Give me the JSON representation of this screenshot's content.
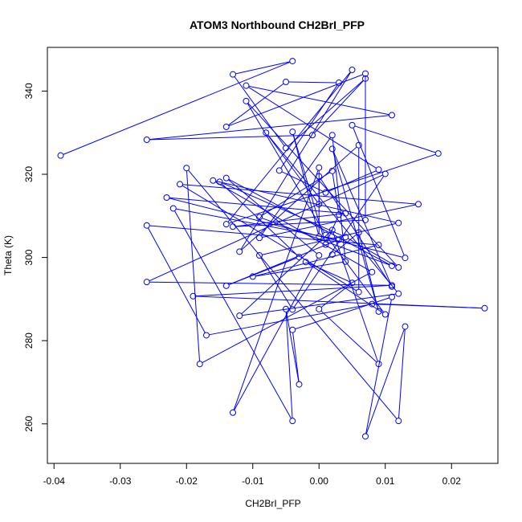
{
  "chart_data": {
    "type": "line",
    "title": "ATOM3 Northbound CH2BrI_PFP",
    "xlabel": "CH2BrI_PFP",
    "ylabel": "Theta (K)",
    "xlim": [
      -0.041,
      0.027
    ],
    "ylim": [
      250.5,
      350.5
    ],
    "x_ticks": [
      -0.04,
      -0.03,
      -0.02,
      -0.01,
      0.0,
      0.01,
      0.02
    ],
    "x_tick_labels": [
      "-0.04",
      "-0.03",
      "-0.02",
      "-0.01",
      "0.00",
      "0.01",
      "0.02"
    ],
    "y_ticks": [
      260,
      280,
      300,
      320,
      340
    ],
    "y_tick_labels": [
      "260",
      "280",
      "300",
      "320",
      "340"
    ],
    "series": [
      {
        "color": "#0000ff",
        "marker": "open-circle",
        "points": [
          [
            -0.039,
            324.5
          ],
          [
            -0.004,
            347.2
          ],
          [
            -0.013,
            344.0
          ],
          [
            -0.005,
            326.3
          ],
          [
            0.007,
            343.0
          ],
          [
            -0.001,
            329.4
          ],
          [
            -0.026,
            328.3
          ],
          [
            0.011,
            334.2
          ],
          [
            -0.011,
            341.3
          ],
          [
            0.009,
            321.1
          ],
          [
            0.001,
            315.6
          ],
          [
            -0.006,
            320.9
          ],
          [
            0.003,
            342.0
          ],
          [
            -0.005,
            342.2
          ],
          [
            -0.014,
            331.4
          ],
          [
            0.007,
            344.2
          ],
          [
            0.007,
            309.0
          ],
          [
            -0.013,
            307.4
          ],
          [
            0.004,
            310.6
          ],
          [
            -0.023,
            314.4
          ],
          [
            0.013,
            299.9
          ],
          [
            0.005,
            331.8
          ],
          [
            0.018,
            325.0
          ],
          [
            -0.014,
            308.0
          ],
          [
            0.005,
            345.1
          ],
          [
            -0.012,
            301.4
          ],
          [
            0.006,
            327.0
          ],
          [
            0.006,
            291.7
          ],
          [
            -0.021,
            317.6
          ],
          [
            0.015,
            312.8
          ],
          [
            -0.009,
            304.7
          ],
          [
            0.002,
            329.4
          ],
          [
            0.004,
            299.0
          ],
          [
            -0.01,
            295.4
          ],
          [
            0.009,
            303.0
          ],
          [
            -0.026,
            307.7
          ],
          [
            -0.017,
            281.3
          ],
          [
            0.008,
            288.8
          ],
          [
            0.025,
            287.8
          ],
          [
            -0.019,
            290.7
          ],
          [
            0.011,
            293.3
          ],
          [
            -0.026,
            294.1
          ],
          [
            0.01,
            320.1
          ],
          [
            -0.004,
            287.5
          ],
          [
            -0.009,
            300.5
          ],
          [
            0.012,
            308.3
          ],
          [
            -0.016,
            318.5
          ],
          [
            0.008,
            296.5
          ],
          [
            -0.018,
            274.4
          ],
          [
            -0.02,
            321.5
          ],
          [
            0.012,
            260.7
          ],
          [
            0.013,
            283.4
          ],
          [
            0.007,
            257.0
          ],
          [
            0.011,
            290.5
          ],
          [
            -0.004,
            282.6
          ],
          [
            -0.003,
            269.5
          ],
          [
            -0.005,
            287.6
          ],
          [
            -0.004,
            260.7
          ],
          [
            -0.022,
            311.8
          ],
          [
            0.003,
            304.3
          ],
          [
            -0.014,
            293.2
          ],
          [
            -0.003,
            300.1
          ],
          [
            -0.015,
            318.2
          ],
          [
            0.004,
            304.9
          ],
          [
            0.012,
            297.6
          ],
          [
            -0.011,
            337.6
          ],
          [
            0.001,
            305.4
          ],
          [
            0.01,
            286.3
          ],
          [
            -0.002,
            298.9
          ],
          [
            0.005,
            293.9
          ],
          [
            0.0,
            287.6
          ],
          [
            0.009,
            274.4
          ],
          [
            0.002,
            306.6
          ],
          [
            -0.012,
            286.0
          ],
          [
            0.012,
            291.3
          ],
          [
            -0.008,
            330.0
          ],
          [
            0.0,
            312.8
          ],
          [
            0.0,
            321.6
          ],
          [
            -0.013,
            262.7
          ],
          [
            0.0,
            300.5
          ],
          [
            -0.014,
            319.1
          ],
          [
            0.011,
            298.0
          ],
          [
            -0.009,
            309.7
          ],
          [
            0.002,
            320.8
          ],
          [
            0.003,
            310.3
          ],
          [
            0.001,
            303.1
          ],
          [
            -0.004,
            330.2
          ],
          [
            0.0,
            305.0
          ],
          [
            0.0,
            319.5
          ],
          [
            0.011,
            293.0
          ],
          [
            0.002,
            326.1
          ],
          [
            0.009,
            287.0
          ],
          [
            0.006,
            306.0
          ],
          [
            0.002,
            300.7
          ]
        ]
      }
    ]
  }
}
